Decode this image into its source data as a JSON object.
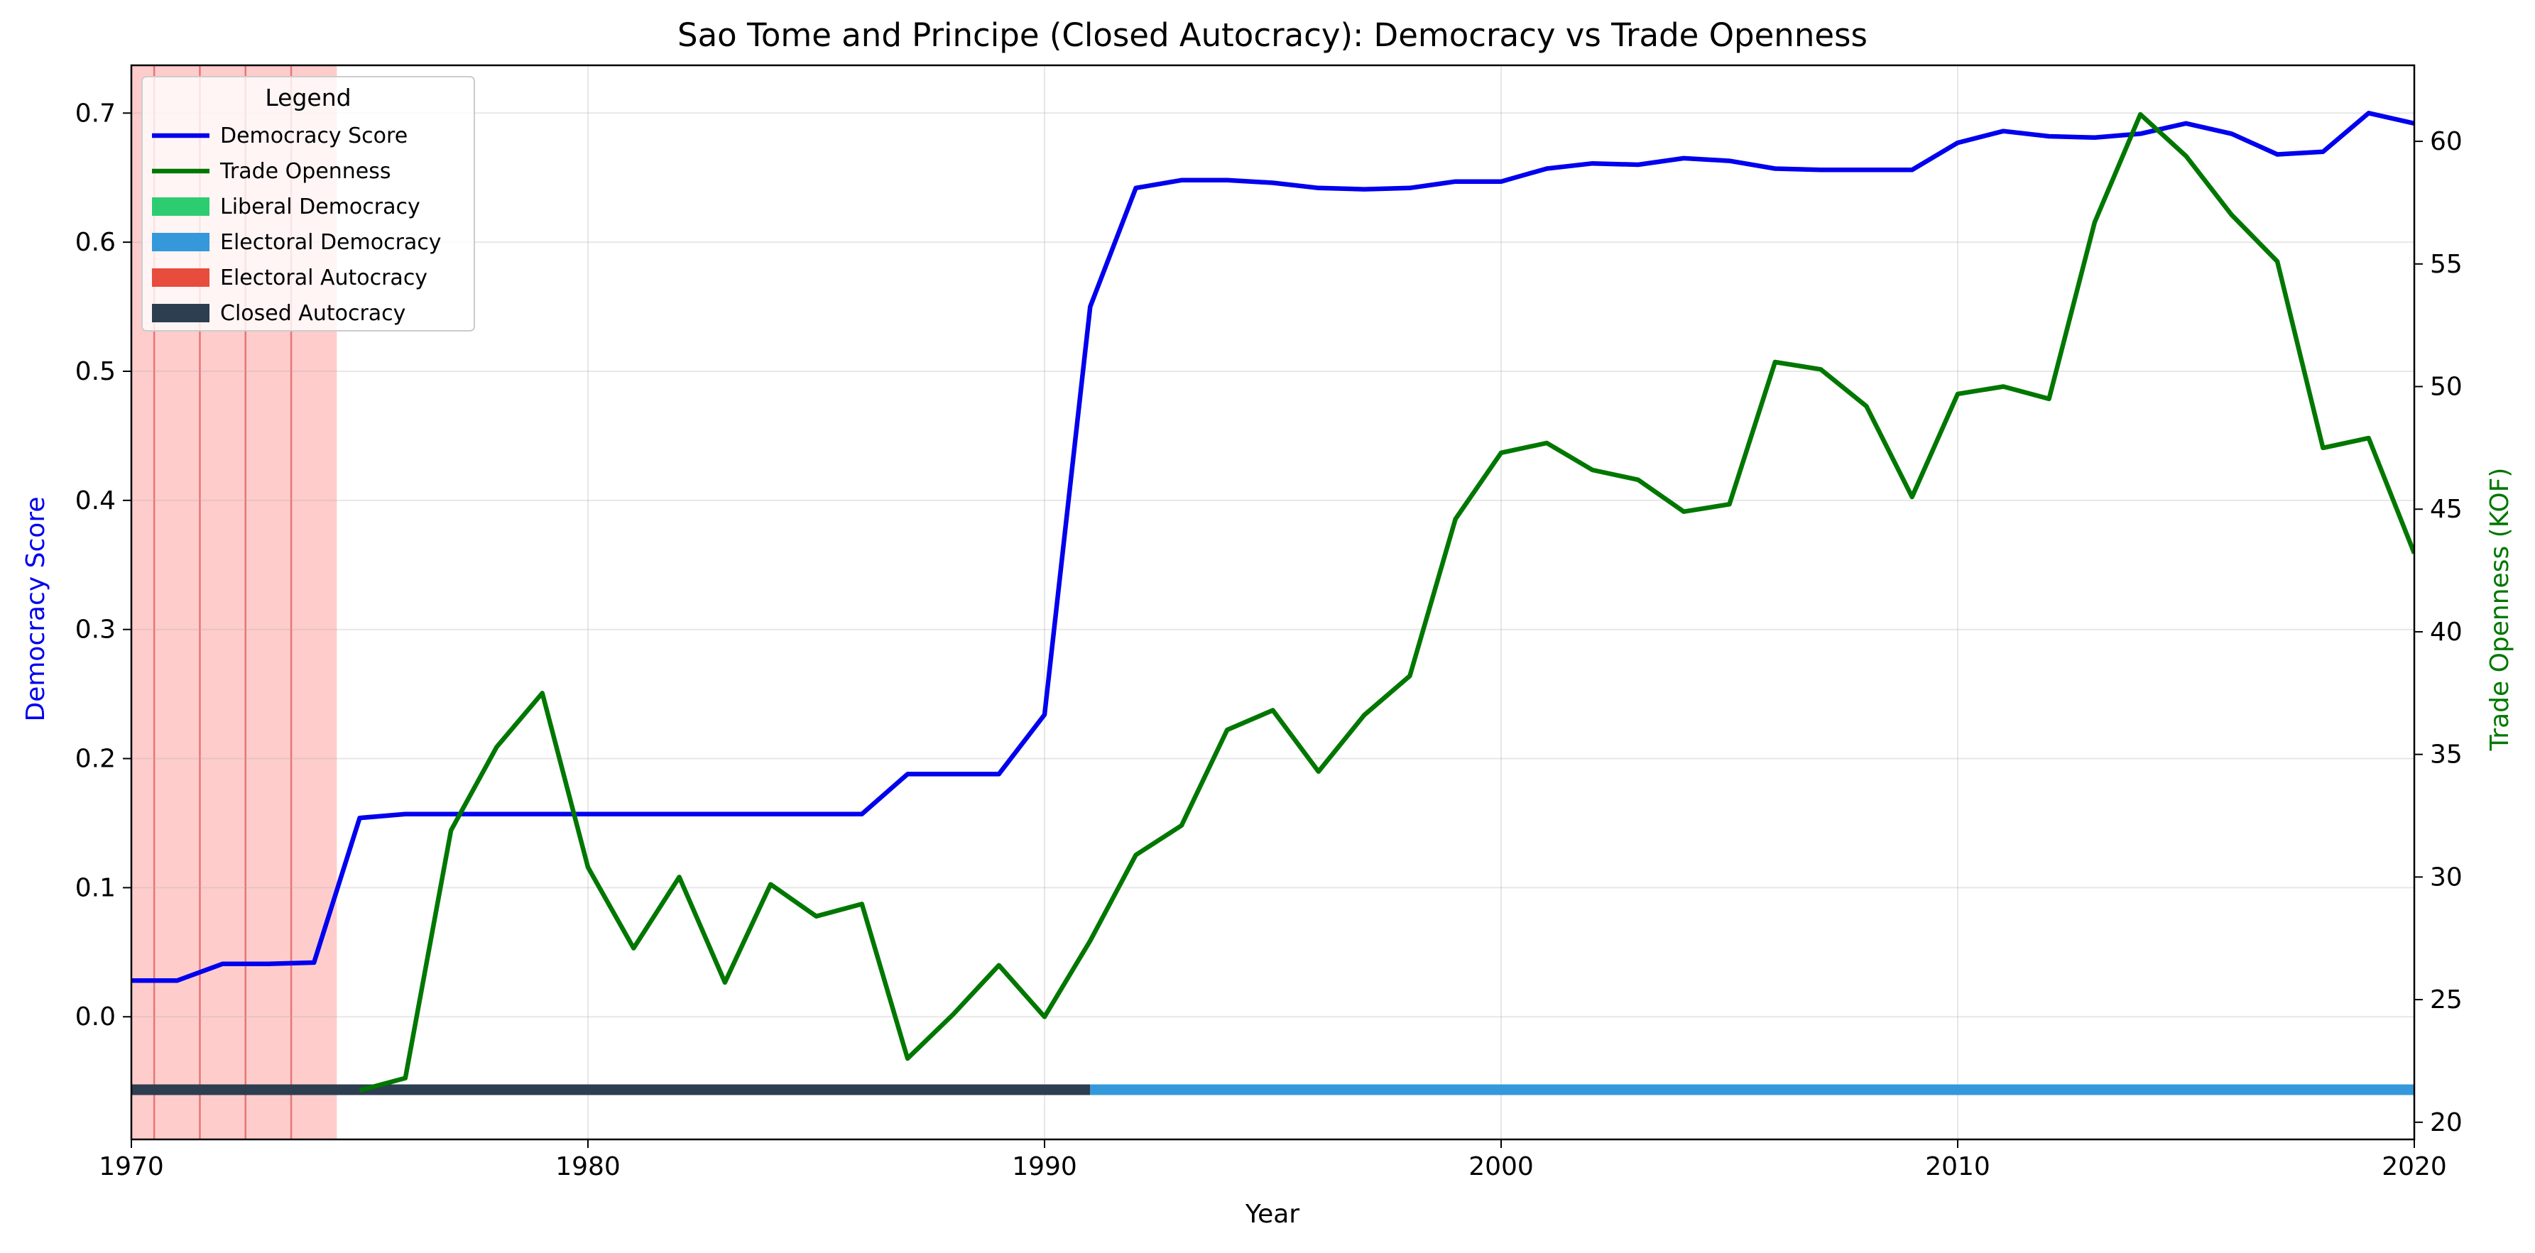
{
  "chart_data": {
    "type": "line",
    "title": "Sao Tome and Principe (Closed Autocracy): Democracy vs Trade Openness",
    "xlabel": "Year",
    "ylabel_left": "Democracy Score",
    "ylabel_right": "Trade Openness (KOF)",
    "xlim": [
      1970,
      2020
    ],
    "ylim_left": [
      -0.095,
      0.737
    ],
    "ylim_right": [
      19.3,
      63.1
    ],
    "x_ticks": [
      1970,
      1980,
      1990,
      2000,
      2010,
      2020
    ],
    "y_left_ticks": [
      "0.0",
      "0.1",
      "0.2",
      "0.3",
      "0.4",
      "0.5",
      "0.6",
      "0.7"
    ],
    "y_right_ticks": [
      "20",
      "25",
      "30",
      "35",
      "40",
      "45",
      "50",
      "55",
      "60"
    ],
    "grid": true,
    "legend": {
      "title": "Legend",
      "placement": "top-left",
      "entries": [
        {
          "label": "Democracy Score",
          "kind": "line",
          "color": "#0000ee"
        },
        {
          "label": "Trade Openness",
          "kind": "line",
          "color": "#007700"
        },
        {
          "label": "Liberal Democracy",
          "kind": "patch",
          "color": "#2ecc71"
        },
        {
          "label": "Electoral Democracy",
          "kind": "patch",
          "color": "#3498db"
        },
        {
          "label": "Electoral Autocracy",
          "kind": "patch",
          "color": "#e74c3c"
        },
        {
          "label": "Closed Autocracy",
          "kind": "patch",
          "color": "#2c3e50"
        }
      ]
    },
    "series": [
      {
        "name": "Democracy Score",
        "axis": "left",
        "color": "#0000ee",
        "x": [
          1970,
          1971,
          1972,
          1973,
          1974,
          1975,
          1976,
          1977,
          1978,
          1979,
          1980,
          1981,
          1982,
          1983,
          1984,
          1985,
          1986,
          1987,
          1988,
          1989,
          1990,
          1991,
          1992,
          1993,
          1994,
          1995,
          1996,
          1997,
          1998,
          1999,
          2000,
          2001,
          2002,
          2003,
          2004,
          2005,
          2006,
          2007,
          2008,
          2009,
          2010,
          2011,
          2012,
          2013,
          2014,
          2015,
          2016,
          2017,
          2018,
          2019,
          2020
        ],
        "y": [
          0.028,
          0.028,
          0.041,
          0.041,
          0.042,
          0.154,
          0.157,
          0.157,
          0.157,
          0.157,
          0.157,
          0.157,
          0.157,
          0.157,
          0.157,
          0.157,
          0.157,
          0.188,
          0.188,
          0.188,
          0.234,
          0.55,
          0.642,
          0.648,
          0.648,
          0.646,
          0.642,
          0.641,
          0.642,
          0.647,
          0.647,
          0.657,
          0.661,
          0.66,
          0.665,
          0.663,
          0.657,
          0.656,
          0.656,
          0.656,
          0.677,
          0.686,
          0.682,
          0.681,
          0.684,
          0.692,
          0.684,
          0.668,
          0.67,
          0.7,
          0.692
        ]
      },
      {
        "name": "Trade Openness",
        "axis": "right",
        "color": "#007700",
        "x": [
          1975,
          1976,
          1977,
          1978,
          1979,
          1980,
          1981,
          1982,
          1983,
          1984,
          1985,
          1986,
          1987,
          1988,
          1989,
          1990,
          1991,
          1992,
          1993,
          1994,
          1995,
          1996,
          1997,
          1998,
          1999,
          2000,
          2001,
          2002,
          2003,
          2004,
          2005,
          2006,
          2007,
          2008,
          2009,
          2010,
          2011,
          2012,
          2013,
          2014,
          2015,
          2016,
          2017,
          2018,
          2019,
          2020
        ],
        "y": [
          21.3,
          21.8,
          31.9,
          35.3,
          37.5,
          30.4,
          27.1,
          30.0,
          25.7,
          29.7,
          28.4,
          28.9,
          22.6,
          24.4,
          26.4,
          24.3,
          27.4,
          30.9,
          32.1,
          36.0,
          36.8,
          34.3,
          36.6,
          38.2,
          44.6,
          47.3,
          47.7,
          46.6,
          46.2,
          44.9,
          45.2,
          51.0,
          50.7,
          49.2,
          45.5,
          49.7,
          50.0,
          49.5,
          56.7,
          61.1,
          59.4,
          57.0,
          55.1,
          47.5,
          47.9,
          43.2
        ]
      }
    ],
    "regime_bars": [
      {
        "regime": "Closed Autocracy",
        "color": "#2c3e50",
        "from": 1970,
        "to": 1991
      },
      {
        "regime": "Electoral Democracy",
        "color": "#3498db",
        "from": 1991,
        "to": 2020
      }
    ],
    "shaded_span": {
      "color": "#ff9999",
      "from": 1970,
      "to": 1974.5,
      "year_lines": [
        1970.5,
        1971.5,
        1972.5,
        1973.5
      ]
    }
  }
}
